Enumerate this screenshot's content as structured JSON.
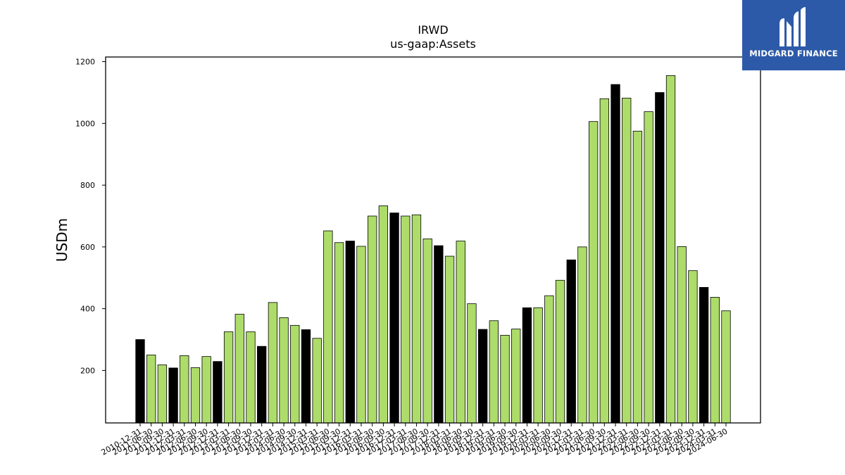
{
  "logo": {
    "text": "MIDGARD FINANCE"
  },
  "chart_data": {
    "type": "bar",
    "title": "IRWD",
    "subtitle": "us-gaap:Assets",
    "xlabel": "",
    "ylabel": "USDm",
    "ylim": [
      30,
      1215
    ],
    "yticks": [
      200,
      400,
      600,
      800,
      1000,
      1200
    ],
    "grid": false,
    "colors": {
      "quarter": "#addc6a",
      "year_end": "#000000",
      "edge": "#000000"
    },
    "categories": [
      "2010-12-31",
      "2011-06-30",
      "2011-09-30",
      "2011-12-31",
      "2012-03-31",
      "2012-06-30",
      "2012-09-30",
      "2012-12-31",
      "2013-03-31",
      "2013-06-30",
      "2013-09-30",
      "2013-12-31",
      "2014-03-31",
      "2014-06-30",
      "2014-09-30",
      "2014-12-31",
      "2015-03-31",
      "2015-06-30",
      "2015-09-30",
      "2015-12-31",
      "2016-03-31",
      "2016-06-30",
      "2016-09-30",
      "2016-12-31",
      "2017-03-31",
      "2017-06-30",
      "2017-09-30",
      "2017-12-31",
      "2018-03-31",
      "2018-06-30",
      "2018-09-30",
      "2018-12-31",
      "2019-03-31",
      "2019-06-30",
      "2019-09-30",
      "2019-12-31",
      "2020-03-31",
      "2020-06-30",
      "2020-09-30",
      "2020-12-31",
      "2021-03-31",
      "2021-06-30",
      "2021-09-30",
      "2021-12-31",
      "2022-03-31",
      "2022-06-30",
      "2022-09-30",
      "2022-12-31",
      "2023-03-31",
      "2023-06-30",
      "2023-09-30",
      "2023-12-31",
      "2024-03-31",
      "2024-06-30"
    ],
    "values": [
      300,
      250,
      218,
      208,
      248,
      209,
      245,
      229,
      325,
      382,
      325,
      278,
      420,
      371,
      346,
      332,
      304,
      652,
      614,
      619,
      602,
      700,
      733,
      710,
      700,
      704,
      626,
      604,
      570,
      619,
      416,
      333,
      361,
      314,
      334,
      403,
      403,
      442,
      492,
      558,
      600,
      1006,
      1080,
      1126,
      1082,
      975,
      1038,
      1100,
      1155,
      601,
      523,
      469,
      437,
      393
    ]
  }
}
